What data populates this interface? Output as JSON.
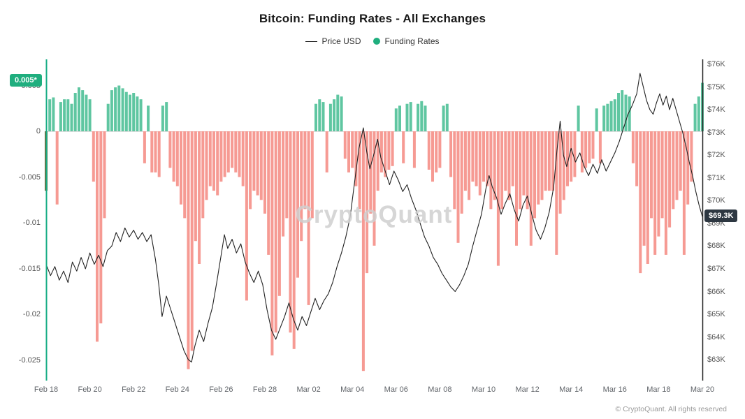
{
  "watermark": "CryptoQuant",
  "footer": "© CryptoQuant. All rights reserved",
  "colors": {
    "positive_bar": "#5fc6a1",
    "negative_bar": "#f69a93",
    "first_bar": "#6e6a3c",
    "price_line": "#222222",
    "left_axis_line": "#17ad85",
    "right_axis_line": "#222222",
    "zero_line": "#dcdcdc",
    "legend_dot": "#1fae7e",
    "badge_green_bg": "#1fae7e",
    "badge_dark_bg": "#2d3741"
  },
  "chart_data": {
    "type": "bar",
    "title": "Bitcoin: Funding Rates - All Exchanges",
    "legend_position": "top",
    "grid": "zero-line-only",
    "x_unit": "days since Feb 18",
    "x_range": [
      0,
      30
    ],
    "x_tick_labels": [
      "Feb 18",
      "Feb 20",
      "Feb 22",
      "Feb 24",
      "Feb 26",
      "Feb 28",
      "Mar 02",
      "Mar 04",
      "Mar 06",
      "Mar 08",
      "Mar 10",
      "Mar 12",
      "Mar 14",
      "Mar 16",
      "Mar 18",
      "Mar 20"
    ],
    "x_tick_days": [
      0,
      2,
      4,
      6,
      8,
      10,
      12,
      14,
      16,
      18,
      20,
      22,
      24,
      26,
      28,
      30
    ],
    "left_axis": {
      "name": "Funding Rates",
      "tick_labels": [
        "0.005",
        "0",
        "-0.005",
        "-0.01",
        "-0.015",
        "-0.02",
        "-0.025"
      ],
      "tick_values": [
        0.005,
        0,
        -0.005,
        -0.01,
        -0.015,
        -0.02,
        -0.025
      ],
      "range": [
        -0.0273,
        0.0079
      ]
    },
    "right_axis": {
      "name": "Price USD",
      "tick_labels": [
        "$76K",
        "$75K",
        "$74K",
        "$73K",
        "$72K",
        "$71K",
        "$70K",
        "$69K",
        "$68K",
        "$67K",
        "$66K",
        "$65K",
        "$64K",
        "$63K"
      ],
      "tick_values": [
        76,
        75,
        74,
        73,
        72,
        71,
        70,
        69,
        68,
        67,
        66,
        65,
        64,
        63
      ],
      "range": [
        63,
        76
      ],
      "unit": "K USD"
    },
    "badges": {
      "funding_current": "0.005*",
      "price_current": "$69.3K"
    },
    "series": [
      {
        "name": "Funding Rates",
        "type": "bar",
        "axis": "left",
        "x_start": 0,
        "x_step": 0.16667,
        "values": [
          -0.0065,
          0.0035,
          0.0037,
          -0.008,
          0.0032,
          0.0035,
          0.0035,
          0.003,
          0.0042,
          0.0048,
          0.0045,
          0.004,
          0.0035,
          -0.0055,
          -0.023,
          -0.021,
          -0.0095,
          0.003,
          0.0045,
          0.0048,
          0.005,
          0.0047,
          0.0043,
          0.004,
          0.0042,
          0.0038,
          0.0035,
          -0.0035,
          0.0028,
          -0.0045,
          -0.0045,
          -0.005,
          0.0028,
          0.0032,
          -0.004,
          -0.0055,
          -0.006,
          -0.008,
          -0.0095,
          -0.026,
          -0.024,
          -0.012,
          -0.0145,
          -0.0095,
          -0.0075,
          -0.006,
          -0.0065,
          -0.007,
          -0.0055,
          -0.005,
          -0.0045,
          -0.004,
          -0.0045,
          -0.005,
          -0.006,
          -0.0185,
          -0.0085,
          -0.0065,
          -0.007,
          -0.0075,
          -0.009,
          -0.0135,
          -0.0245,
          -0.022,
          -0.018,
          -0.0115,
          -0.0095,
          -0.022,
          -0.0238,
          -0.016,
          -0.012,
          -0.0085,
          -0.019,
          -0.0095,
          0.003,
          0.0035,
          0.0032,
          -0.0045,
          0.003,
          0.0035,
          0.004,
          0.0038,
          -0.003,
          -0.0045,
          -0.004,
          -0.006,
          -0.0085,
          -0.0262,
          -0.0155,
          -0.009,
          -0.0125,
          -0.0065,
          -0.0045,
          -0.005,
          -0.0042,
          -0.0038,
          0.0025,
          0.0028,
          -0.0035,
          0.003,
          0.0032,
          -0.004,
          0.003,
          0.0033,
          0.0028,
          -0.0042,
          -0.0055,
          -0.0045,
          -0.004,
          0.0028,
          0.003,
          -0.005,
          -0.0085,
          -0.0122,
          -0.009,
          -0.0065,
          -0.0075,
          -0.0055,
          -0.006,
          -0.007,
          -0.0055,
          -0.006,
          -0.0085,
          -0.0075,
          -0.0147,
          -0.0085,
          -0.0065,
          -0.0075,
          -0.006,
          -0.0125,
          -0.0085,
          -0.007,
          -0.0085,
          -0.0125,
          -0.0095,
          -0.008,
          -0.0075,
          -0.0065,
          -0.0065,
          -0.0065,
          -0.0135,
          -0.009,
          -0.0075,
          -0.006,
          -0.0055,
          -0.005,
          0.0028,
          -0.0045,
          -0.004,
          -0.0035,
          -0.003,
          0.0025,
          -0.0035,
          0.0028,
          0.003,
          0.0033,
          0.0035,
          0.0042,
          0.0045,
          0.004,
          0.0038,
          -0.0035,
          -0.006,
          -0.0155,
          -0.0125,
          -0.0145,
          -0.0095,
          -0.0135,
          -0.0115,
          -0.0095,
          -0.0135,
          -0.0105,
          -0.0085,
          -0.0075,
          -0.0065,
          -0.0135,
          -0.008,
          -0.0055,
          0.003,
          0.0038,
          0.0053
        ]
      },
      {
        "name": "Price USD",
        "type": "line",
        "axis": "right",
        "points": [
          [
            0,
            67.2
          ],
          [
            0.2,
            66.7
          ],
          [
            0.4,
            67.1
          ],
          [
            0.6,
            66.5
          ],
          [
            0.8,
            66.9
          ],
          [
            1,
            66.4
          ],
          [
            1.2,
            67.3
          ],
          [
            1.4,
            66.9
          ],
          [
            1.6,
            67.5
          ],
          [
            1.8,
            67
          ],
          [
            2,
            67.7
          ],
          [
            2.2,
            67.2
          ],
          [
            2.4,
            67.6
          ],
          [
            2.6,
            67.1
          ],
          [
            2.8,
            67.8
          ],
          [
            3,
            68
          ],
          [
            3.2,
            68.6
          ],
          [
            3.4,
            68.2
          ],
          [
            3.6,
            68.8
          ],
          [
            3.8,
            68.4
          ],
          [
            4,
            68.7
          ],
          [
            4.2,
            68.3
          ],
          [
            4.4,
            68.6
          ],
          [
            4.6,
            68.2
          ],
          [
            4.8,
            68.5
          ],
          [
            5,
            67.4
          ],
          [
            5.15,
            66.3
          ],
          [
            5.3,
            64.9
          ],
          [
            5.5,
            65.8
          ],
          [
            5.7,
            65.2
          ],
          [
            5.9,
            64.6
          ],
          [
            6.1,
            64
          ],
          [
            6.3,
            63.4
          ],
          [
            6.5,
            63
          ],
          [
            6.65,
            62.9
          ],
          [
            6.8,
            63.6
          ],
          [
            7,
            64.3
          ],
          [
            7.2,
            63.8
          ],
          [
            7.4,
            64.6
          ],
          [
            7.6,
            65.3
          ],
          [
            7.8,
            66.4
          ],
          [
            8,
            67.6
          ],
          [
            8.15,
            68.5
          ],
          [
            8.3,
            67.9
          ],
          [
            8.5,
            68.3
          ],
          [
            8.7,
            67.7
          ],
          [
            8.9,
            68.1
          ],
          [
            9.1,
            67.3
          ],
          [
            9.3,
            66.8
          ],
          [
            9.5,
            66.4
          ],
          [
            9.7,
            66.9
          ],
          [
            9.9,
            66.3
          ],
          [
            10.1,
            65.2
          ],
          [
            10.3,
            64.3
          ],
          [
            10.5,
            63.9
          ],
          [
            10.7,
            64.4
          ],
          [
            10.9,
            64.9
          ],
          [
            11.1,
            65.5
          ],
          [
            11.3,
            64.8
          ],
          [
            11.5,
            64.3
          ],
          [
            11.7,
            64.9
          ],
          [
            11.9,
            64.5
          ],
          [
            12.1,
            65.1
          ],
          [
            12.3,
            65.7
          ],
          [
            12.5,
            65.2
          ],
          [
            12.7,
            65.6
          ],
          [
            12.9,
            65.9
          ],
          [
            13.1,
            66.4
          ],
          [
            13.3,
            67.1
          ],
          [
            13.5,
            67.7
          ],
          [
            13.7,
            68.4
          ],
          [
            13.9,
            69.3
          ],
          [
            14.1,
            70.8
          ],
          [
            14.3,
            72.3
          ],
          [
            14.5,
            73.2
          ],
          [
            14.65,
            72.2
          ],
          [
            14.8,
            71.4
          ],
          [
            15,
            72.1
          ],
          [
            15.15,
            72.7
          ],
          [
            15.3,
            71.9
          ],
          [
            15.5,
            71.3
          ],
          [
            15.7,
            70.7
          ],
          [
            15.9,
            71.3
          ],
          [
            16.1,
            70.9
          ],
          [
            16.3,
            70.4
          ],
          [
            16.5,
            70.7
          ],
          [
            16.7,
            70.1
          ],
          [
            16.9,
            69.6
          ],
          [
            17.1,
            69
          ],
          [
            17.3,
            68.4
          ],
          [
            17.5,
            68
          ],
          [
            17.7,
            67.5
          ],
          [
            17.9,
            67.2
          ],
          [
            18.1,
            66.8
          ],
          [
            18.3,
            66.5
          ],
          [
            18.5,
            66.2
          ],
          [
            18.7,
            66
          ],
          [
            18.9,
            66.3
          ],
          [
            19.1,
            66.7
          ],
          [
            19.3,
            67.2
          ],
          [
            19.5,
            68
          ],
          [
            19.7,
            68.7
          ],
          [
            19.9,
            69.4
          ],
          [
            20.1,
            70.5
          ],
          [
            20.25,
            71.1
          ],
          [
            20.4,
            70.6
          ],
          [
            20.6,
            70.1
          ],
          [
            20.8,
            69.4
          ],
          [
            21,
            69.9
          ],
          [
            21.2,
            70.3
          ],
          [
            21.4,
            69.6
          ],
          [
            21.6,
            69.1
          ],
          [
            21.8,
            69.8
          ],
          [
            22,
            70.2
          ],
          [
            22.2,
            69.4
          ],
          [
            22.4,
            68.7
          ],
          [
            22.6,
            68.3
          ],
          [
            22.8,
            68.8
          ],
          [
            23,
            69.5
          ],
          [
            23.2,
            70.6
          ],
          [
            23.35,
            72.2
          ],
          [
            23.5,
            73.5
          ],
          [
            23.65,
            72
          ],
          [
            23.8,
            71.5
          ],
          [
            24,
            72.3
          ],
          [
            24.2,
            71.7
          ],
          [
            24.4,
            72.1
          ],
          [
            24.6,
            71.5
          ],
          [
            24.8,
            71.1
          ],
          [
            25,
            71.6
          ],
          [
            25.2,
            71.2
          ],
          [
            25.4,
            71.8
          ],
          [
            25.6,
            71.3
          ],
          [
            25.8,
            71.7
          ],
          [
            26,
            72.1
          ],
          [
            26.2,
            72.6
          ],
          [
            26.4,
            73.2
          ],
          [
            26.6,
            73.8
          ],
          [
            26.8,
            74.2
          ],
          [
            27,
            74.7
          ],
          [
            27.15,
            75.6
          ],
          [
            27.3,
            75
          ],
          [
            27.45,
            74.4
          ],
          [
            27.6,
            74
          ],
          [
            27.75,
            73.8
          ],
          [
            27.9,
            74.3
          ],
          [
            28.05,
            74.7
          ],
          [
            28.2,
            74.2
          ],
          [
            28.35,
            74.6
          ],
          [
            28.5,
            74
          ],
          [
            28.65,
            74.5
          ],
          [
            28.8,
            74
          ],
          [
            28.95,
            73.5
          ],
          [
            29.1,
            73
          ],
          [
            29.25,
            72.4
          ],
          [
            29.4,
            71.7
          ],
          [
            29.55,
            71.1
          ],
          [
            29.7,
            70.4
          ],
          [
            29.85,
            69.8
          ],
          [
            30,
            69.3
          ]
        ]
      }
    ]
  }
}
